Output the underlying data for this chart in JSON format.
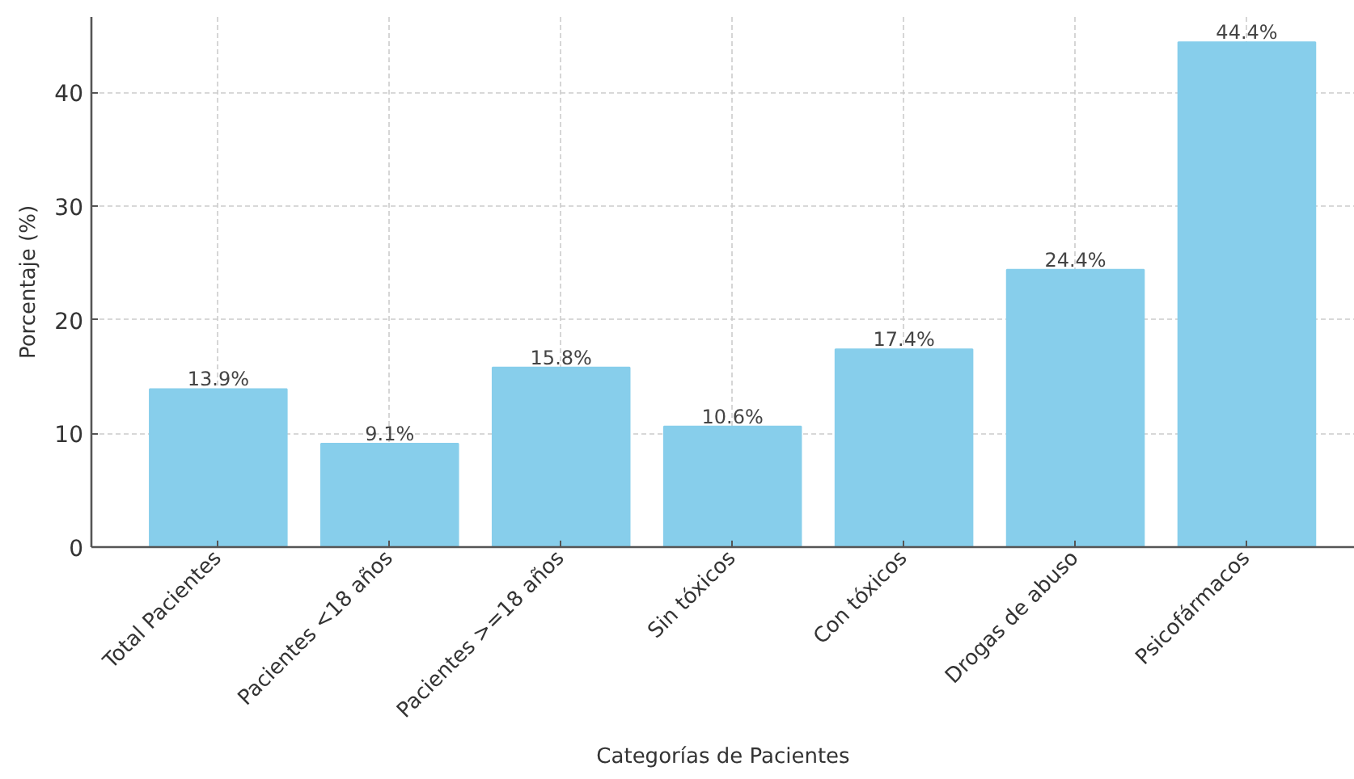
{
  "chart_data": {
    "type": "bar",
    "xlabel": "Categorías de Pacientes",
    "ylabel": "Porcentaje (%)",
    "categories": [
      "Total Pacientes",
      "Pacientes <18 años",
      "Pacientes >=18 años",
      "Sin tóxicos",
      "Con tóxicos",
      "Drogas de abuso",
      "Psicofármacos"
    ],
    "values": [
      13.9,
      9.1,
      15.8,
      10.6,
      17.4,
      24.4,
      44.4
    ],
    "color": "#87ceeb",
    "value_labels": [
      "13.9%",
      "9.1%",
      "15.8%",
      "10.6%",
      "17.4%",
      "24.4%",
      "44.4%"
    ],
    "ylim": [
      0,
      46.62
    ],
    "yticks": [
      0,
      10,
      20,
      30,
      40
    ],
    "grid": true
  }
}
